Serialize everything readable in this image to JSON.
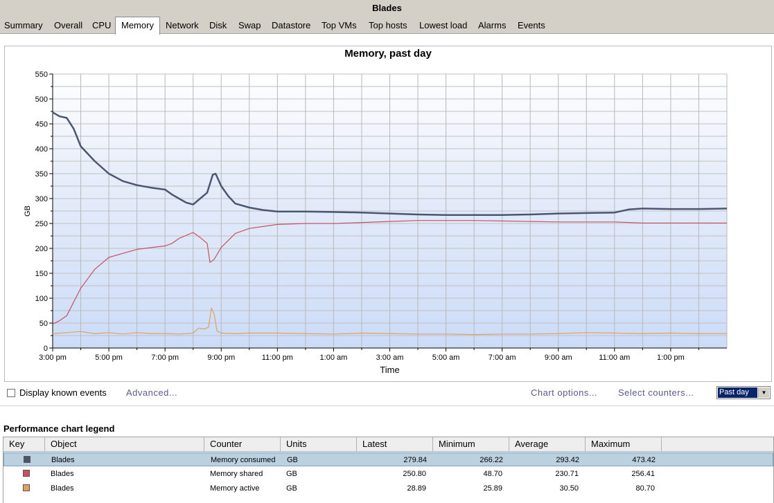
{
  "window": {
    "title": "Blades"
  },
  "tabs": [
    {
      "label": "Summary"
    },
    {
      "label": "Overall"
    },
    {
      "label": "CPU"
    },
    {
      "label": "Memory",
      "active": true
    },
    {
      "label": "Network"
    },
    {
      "label": "Disk"
    },
    {
      "label": "Swap"
    },
    {
      "label": "Datastore"
    },
    {
      "label": "Top VMs"
    },
    {
      "label": "Top hosts"
    },
    {
      "label": "Lowest load"
    },
    {
      "label": "Alarms"
    },
    {
      "label": "Events"
    }
  ],
  "chart_data": {
    "type": "line",
    "title": "Memory, past day",
    "xlabel": "Time",
    "ylabel": "GB",
    "ylim": [
      0,
      550
    ],
    "yticks": [
      "0",
      "50",
      "100",
      "150",
      "200",
      "250",
      "300",
      "350",
      "400",
      "450",
      "500",
      "550"
    ],
    "xlim": [
      0,
      24
    ],
    "xticks": [
      {
        "x": 0,
        "label": "3:00 pm"
      },
      {
        "x": 2,
        "label": "5:00 pm"
      },
      {
        "x": 4,
        "label": "7:00 pm"
      },
      {
        "x": 6,
        "label": "9:00 pm"
      },
      {
        "x": 8,
        "label": "11:00 pm"
      },
      {
        "x": 10,
        "label": "1:00 am"
      },
      {
        "x": 12,
        "label": "3:00 am"
      },
      {
        "x": 14,
        "label": "5:00 am"
      },
      {
        "x": 16,
        "label": "7:00 am"
      },
      {
        "x": 18,
        "label": "9:00 am"
      },
      {
        "x": 20,
        "label": "11:00 am"
      },
      {
        "x": 22,
        "label": "1:00 pm"
      }
    ],
    "grid": true,
    "series": [
      {
        "color": "#4a5570",
        "width": 2.5,
        "x": [
          0,
          0.25,
          0.5,
          0.75,
          1,
          1.5,
          2,
          2.5,
          3,
          3.5,
          4,
          4.25,
          4.5,
          4.75,
          5,
          5.25,
          5.5,
          5.7,
          5.8,
          6,
          6.25,
          6.5,
          7,
          7.5,
          8,
          9,
          10,
          11,
          12,
          13,
          14,
          15,
          16,
          17,
          18,
          19,
          20,
          20.5,
          21,
          22,
          23,
          24
        ],
        "y": [
          473,
          465,
          462,
          440,
          405,
          375,
          350,
          335,
          327,
          322,
          318,
          308,
          300,
          292,
          288,
          300,
          312,
          348,
          350,
          325,
          305,
          290,
          282,
          277,
          274,
          274,
          273,
          272,
          270,
          268,
          267,
          267,
          267,
          268,
          270,
          271,
          272,
          278,
          280,
          279,
          279,
          280
        ]
      },
      {
        "color": "#c85060",
        "width": 1.2,
        "x": [
          0,
          0.25,
          0.5,
          1,
          1.5,
          2,
          2.5,
          3,
          4,
          4.25,
          4.5,
          5,
          5.25,
          5.5,
          5.6,
          5.75,
          6,
          6.5,
          7,
          8,
          9,
          10,
          11,
          12,
          13,
          14,
          15,
          16,
          17,
          18,
          19,
          20,
          21,
          22,
          23,
          24
        ],
        "y": [
          48,
          55,
          65,
          120,
          158,
          182,
          190,
          198,
          205,
          210,
          220,
          232,
          222,
          210,
          172,
          178,
          202,
          230,
          240,
          248,
          250,
          250,
          252,
          254,
          256,
          256,
          256,
          255,
          254,
          253,
          253,
          253,
          251,
          251,
          251,
          251
        ]
      },
      {
        "color": "#e0a060",
        "width": 1.2,
        "x": [
          0,
          0.5,
          1,
          1.5,
          2,
          2.5,
          3,
          3.5,
          4,
          4.5,
          5,
          5.2,
          5.4,
          5.55,
          5.65,
          5.75,
          5.85,
          6,
          6.5,
          7,
          8,
          9,
          10,
          11,
          12,
          13,
          14,
          15,
          16,
          17,
          18,
          19,
          20,
          21,
          22,
          23,
          24
        ],
        "y": [
          29,
          31,
          33,
          29,
          31,
          28,
          31,
          29,
          29,
          28,
          30,
          40,
          38,
          42,
          80,
          68,
          34,
          30,
          29,
          30,
          30,
          29,
          28,
          30,
          29,
          28,
          28,
          27,
          28,
          28,
          29,
          31,
          30,
          29,
          30,
          29,
          29
        ]
      }
    ]
  },
  "options": {
    "display_events_label": "Display known events",
    "advanced_link": "Advanced...",
    "chart_options_link": "Chart options...",
    "select_counters_link": "Select counters...",
    "period_selected": "Past day"
  },
  "legend": {
    "title": "Performance chart legend",
    "headers": [
      "Key",
      "Object",
      "Counter",
      "Units",
      "Latest",
      "Minimum",
      "Average",
      "Maximum"
    ],
    "rows": [
      {
        "color": "#4a5570",
        "object": "Blades",
        "counter": "Memory consumed",
        "units": "GB",
        "latest": "279.84",
        "minimum": "266.22",
        "average": "293.42",
        "maximum": "473.42"
      },
      {
        "color": "#c85060",
        "object": "Blades",
        "counter": "Memory shared",
        "units": "GB",
        "latest": "250.80",
        "minimum": "48.70",
        "average": "230.71",
        "maximum": "256.41"
      },
      {
        "color": "#e0a060",
        "object": "Blades",
        "counter": "Memory active",
        "units": "GB",
        "latest": "28.89",
        "minimum": "25.89",
        "average": "30.50",
        "maximum": "80.70"
      }
    ]
  }
}
